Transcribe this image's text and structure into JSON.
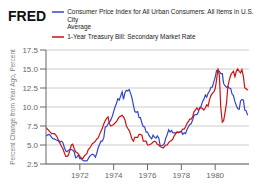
{
  "chart_data": {
    "type": "line",
    "title": "FRED",
    "y_label": "Percent Change from Year Ago, Percent",
    "x": [
      1970.0,
      1970.08,
      1970.17,
      1970.25,
      1970.33,
      1970.42,
      1970.5,
      1970.58,
      1970.67,
      1970.75,
      1970.83,
      1970.92,
      1971.0,
      1971.08,
      1971.17,
      1971.25,
      1971.33,
      1971.42,
      1971.5,
      1971.58,
      1971.67,
      1971.75,
      1971.83,
      1971.92,
      1972.0,
      1972.08,
      1972.17,
      1972.25,
      1972.33,
      1972.42,
      1972.5,
      1972.58,
      1972.67,
      1972.75,
      1972.83,
      1972.92,
      1973.0,
      1973.08,
      1973.17,
      1973.25,
      1973.33,
      1973.42,
      1973.5,
      1973.58,
      1973.67,
      1973.75,
      1973.83,
      1973.92,
      1974.0,
      1974.08,
      1974.17,
      1974.25,
      1974.33,
      1974.42,
      1974.5,
      1974.58,
      1974.67,
      1974.75,
      1974.83,
      1974.92,
      1975.0,
      1975.08,
      1975.17,
      1975.25,
      1975.33,
      1975.42,
      1975.5,
      1975.58,
      1975.67,
      1975.75,
      1975.83,
      1975.92,
      1976.0,
      1976.08,
      1976.17,
      1976.25,
      1976.33,
      1976.42,
      1976.5,
      1976.58,
      1976.67,
      1976.75,
      1976.83,
      1976.92,
      1977.0,
      1977.08,
      1977.17,
      1977.25,
      1977.33,
      1977.42,
      1977.5,
      1977.58,
      1977.67,
      1977.75,
      1977.83,
      1977.92,
      1978.0,
      1978.08,
      1978.17,
      1978.25,
      1978.33,
      1978.42,
      1978.5,
      1978.58,
      1978.67,
      1978.75,
      1978.83,
      1978.92,
      1979.0,
      1979.08,
      1979.17,
      1979.25,
      1979.33,
      1979.42,
      1979.5,
      1979.58,
      1979.67,
      1979.75,
      1979.83,
      1979.92,
      1980.0,
      1980.08,
      1980.17,
      1980.25,
      1980.33,
      1980.42,
      1980.5,
      1980.58,
      1980.67,
      1980.75,
      1980.83,
      1980.92,
      1981.0,
      1981.08,
      1981.17,
      1981.25,
      1981.33,
      1981.42,
      1981.5,
      1981.58,
      1981.67,
      1981.75,
      1981.83,
      1981.92
    ],
    "series": [
      {
        "name": "Consumer Price Index for All Urban Consumers: All Items in U.S. City\nAverage",
        "color": "#3344cc",
        "values": [
          6.2,
          6.3,
          6.4,
          6.3,
          6.0,
          5.8,
          5.8,
          5.7,
          5.6,
          5.6,
          5.4,
          5.5,
          5.3,
          4.7,
          4.2,
          4.1,
          4.3,
          4.4,
          4.4,
          4.3,
          4.1,
          3.3,
          3.4,
          3.7,
          3.2,
          3.2,
          3.0,
          2.9,
          2.9,
          2.9,
          3.2,
          3.5,
          3.7,
          3.8,
          3.7,
          3.4,
          3.9,
          4.6,
          5.1,
          5.5,
          5.5,
          6.0,
          7.4,
          7.4,
          7.8,
          8.0,
          8.3,
          8.8,
          9.4,
          10.0,
          10.5,
          11.1,
          10.9,
          11.5,
          12.0,
          11.0,
          11.9,
          12.2,
          12.1,
          12.3,
          11.8,
          11.2,
          10.2,
          9.4,
          9.3,
          9.4,
          8.6,
          8.6,
          7.9,
          7.4,
          7.4,
          6.7,
          6.7,
          6.3,
          6.0,
          5.8,
          6.3,
          6.0,
          5.9,
          6.2,
          5.9,
          4.9,
          4.9,
          5.0,
          5.2,
          5.9,
          6.4,
          7.0,
          6.7,
          6.9,
          6.6,
          6.6,
          6.6,
          6.7,
          6.7,
          6.7,
          6.8,
          6.4,
          6.6,
          6.5,
          7.0,
          7.4,
          7.7,
          7.8,
          8.3,
          8.9,
          9.0,
          9.0,
          9.3,
          9.9,
          10.1,
          10.7,
          11.0,
          11.6,
          11.3,
          11.8,
          12.1,
          12.6,
          12.6,
          13.3,
          13.9,
          14.8,
          14.7,
          14.7,
          14.4,
          14.4,
          13.1,
          12.8,
          12.6,
          12.7,
          12.5,
          12.4,
          11.7,
          11.5,
          10.7,
          10.2,
          9.8,
          9.7,
          10.8,
          11.0,
          10.9,
          9.6,
          9.5,
          8.9
        ]
      },
      {
        "name": "1-Year Treasury Bill: Secondary Market Rate",
        "color": "#cc1111",
        "values": [
          7.3,
          7.1,
          6.9,
          6.7,
          6.5,
          6.5,
          6.5,
          6.3,
          6.0,
          5.5,
          5.2,
          4.8,
          4.5,
          4.0,
          3.5,
          3.5,
          3.7,
          4.4,
          5.0,
          5.1,
          4.5,
          4.1,
          4.0,
          3.8,
          3.5,
          3.3,
          3.2,
          3.5,
          3.7,
          3.9,
          4.4,
          4.6,
          4.9,
          5.2,
          5.3,
          5.5,
          5.8,
          5.9,
          6.4,
          6.8,
          7.2,
          7.8,
          8.2,
          8.5,
          8.7,
          7.8,
          7.5,
          7.6,
          7.7,
          7.9,
          8.1,
          8.4,
          8.7,
          8.8,
          8.9,
          8.7,
          8.3,
          7.5,
          7.2,
          6.9,
          6.4,
          5.8,
          5.5,
          6.0,
          6.0,
          6.0,
          6.4,
          6.4,
          6.3,
          5.5,
          5.5,
          5.5,
          5.0,
          5.0,
          5.1,
          5.2,
          5.4,
          5.5,
          5.4,
          5.1,
          5.0,
          4.8,
          4.7,
          4.6,
          4.8,
          5.0,
          5.0,
          5.3,
          5.5,
          5.6,
          5.8,
          6.2,
          6.5,
          6.7,
          6.6,
          6.7,
          6.8,
          7.1,
          7.1,
          7.4,
          7.8,
          8.1,
          8.4,
          8.4,
          8.7,
          9.4,
          9.6,
          9.9,
          9.6,
          9.8,
          9.9,
          9.8,
          9.6,
          9.9,
          10.3,
          10.1,
          11.0,
          11.5,
          11.8,
          12.0,
          12.4,
          13.5,
          15.1,
          14.1,
          10.0,
          8.0,
          8.2,
          9.2,
          10.5,
          12.7,
          13.5,
          14.2,
          14.5,
          14.7,
          14.0,
          14.7,
          15.0,
          14.7,
          14.5,
          14.9,
          14.0,
          12.5,
          12.4,
          12.2
        ]
      }
    ],
    "xlim": [
      1970.0,
      1982.0
    ],
    "xticks": [
      1972,
      1974,
      1976,
      1978,
      1980
    ],
    "ylim": [
      2.5,
      17.5
    ],
    "yticks": [
      2.5,
      {
        "value": 5.0,
        "label": "5.0"
      },
      7.5,
      {
        "value": 10.0,
        "label": "10.0"
      },
      12.5,
      {
        "value": 15.0,
        "label": "15.0"
      },
      17.5
    ],
    "grid": "y",
    "legend": "top"
  }
}
